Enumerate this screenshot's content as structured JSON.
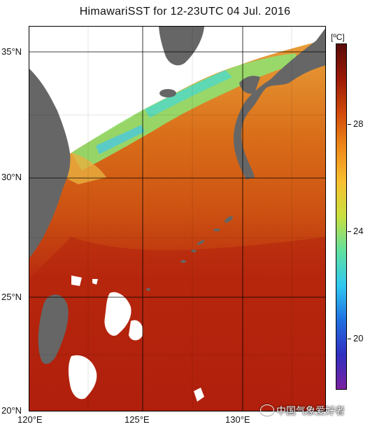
{
  "title": "HimawariSST for 12-23UTC 04 Jul. 2016",
  "lat_labels": [
    "35°N",
    "30°N",
    "25°N",
    "20°N"
  ],
  "lon_labels": [
    "120°E",
    "125°E",
    "130°E"
  ],
  "colorbar": {
    "unit": "[ºC]",
    "tick_labels": [
      "28",
      "24",
      "20"
    ],
    "range": [
      18,
      31
    ],
    "colors": [
      "#5a0a0a",
      "#9a1a06",
      "#d04a0a",
      "#ee8a1a",
      "#f8c030",
      "#c8e040",
      "#60e0a0",
      "#30c8f0",
      "#2070e0",
      "#3030c0",
      "#7a20a0"
    ]
  },
  "map": {
    "land_color": "#666666",
    "no_data_color": "#ffffff",
    "sea_warm_color": "#b8200c",
    "sea_mid_color": "#d8600c",
    "sea_north_color": "#e89830",
    "sea_cool_color": "#90e070"
  },
  "watermark": "中国气象爱好者"
}
